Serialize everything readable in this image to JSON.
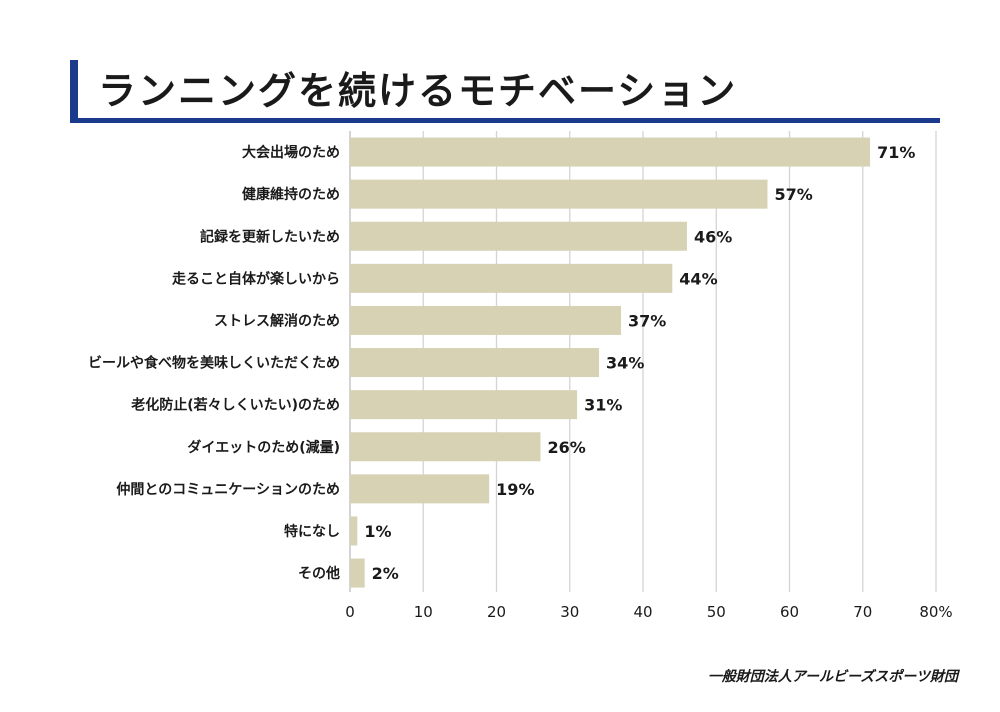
{
  "title": "ランニングを続けるモチベーション",
  "footer": "一般財団法人アールビーズスポーツ財団",
  "colors": {
    "accent": "#1b3a8c",
    "bar": "#d6d2b3",
    "grid": "#d4d4d4",
    "text": "#1a1a1a"
  },
  "chart_data": {
    "type": "bar",
    "orientation": "horizontal",
    "categories": [
      "大会出場のため",
      "健康維持のため",
      "記録を更新したいため",
      "走ること自体が楽しいから",
      "ストレス解消のため",
      "ビールや食べ物を美味しくいただくため",
      "老化防止(若々しくいたい)のため",
      "ダイエットのため(減量)",
      "仲間とのコミュニケーションのため",
      "特になし",
      "その他"
    ],
    "values": [
      71,
      57,
      46,
      44,
      37,
      34,
      31,
      26,
      19,
      1,
      2
    ],
    "value_labels": [
      "71%",
      "57%",
      "46%",
      "44%",
      "37%",
      "34%",
      "31%",
      "26%",
      "19%",
      "1%",
      "2%"
    ],
    "xlim": [
      0,
      80
    ],
    "xticks": [
      "0",
      "10",
      "20",
      "30",
      "40",
      "50",
      "60",
      "70",
      "80%"
    ],
    "grid": true
  }
}
